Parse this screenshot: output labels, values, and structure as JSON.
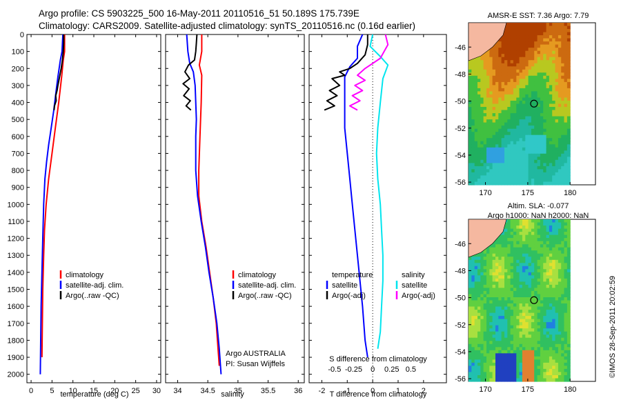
{
  "title": {
    "line1": "Argo profile: CS 5903225_500 16-May-2011 20110516_51 50.189S 175.739E",
    "line2": "Climatology: CARS2009. Satellite-adjusted climatology: synTS_20110516.nc (0.16d earlier)"
  },
  "watermark": "©IMOS 28-Sep-2011 20:02:59",
  "colors": {
    "climatology": "#ff0000",
    "satellite": "#0000ff",
    "argo": "#000000",
    "salinity_sat": "#00e5ee",
    "salinity_argo": "#ff00ff"
  },
  "chart_data": [
    {
      "id": "temperature",
      "type": "line",
      "xlabel": "temperature (deg C)",
      "xlim": [
        -1,
        31
      ],
      "xticks": [
        0,
        5,
        10,
        15,
        20,
        25,
        30
      ],
      "xtick_labels": [
        "0",
        "5",
        "10",
        "15",
        "20",
        "25",
        "30"
      ],
      "ylim": [
        0,
        2050
      ],
      "yticks": [
        0,
        100,
        200,
        300,
        400,
        500,
        600,
        700,
        800,
        900,
        1000,
        1100,
        1200,
        1300,
        1400,
        1500,
        1600,
        1700,
        1800,
        1900,
        2000
      ],
      "y_reversed": true,
      "legend": {
        "placement": "lower-middle",
        "entries": [
          "climatology",
          "satellite-adj. clim.",
          "Argo(..raw -QC)"
        ]
      },
      "series": [
        {
          "name": "climatology",
          "color": "#ff0000",
          "points": [
            [
              8.0,
              0
            ],
            [
              8.0,
              100
            ],
            [
              7.7,
              150
            ],
            [
              7.3,
              250
            ],
            [
              6.6,
              400
            ],
            [
              5.8,
              550
            ],
            [
              5.0,
              700
            ],
            [
              4.2,
              850
            ],
            [
              3.6,
              1000
            ],
            [
              3.2,
              1150
            ],
            [
              3.0,
              1300
            ],
            [
              2.8,
              1500
            ],
            [
              2.7,
              1700
            ],
            [
              2.6,
              1900
            ]
          ]
        },
        {
          "name": "satellite-adj. clim.",
          "color": "#0000ff",
          "points": [
            [
              7.6,
              0
            ],
            [
              7.4,
              100
            ],
            [
              7.0,
              150
            ],
            [
              6.4,
              250
            ],
            [
              5.9,
              350
            ],
            [
              5.4,
              450
            ],
            [
              4.8,
              550
            ],
            [
              4.2,
              650
            ],
            [
              3.7,
              750
            ],
            [
              3.3,
              850
            ],
            [
              3.0,
              1000
            ],
            [
              2.8,
              1200
            ],
            [
              2.6,
              1400
            ],
            [
              2.4,
              1600
            ],
            [
              2.3,
              1800
            ],
            [
              2.2,
              2000
            ]
          ]
        },
        {
          "name": "Argo(..raw -QC)",
          "color": "#000000",
          "points": [
            [
              7.8,
              0
            ],
            [
              7.8,
              50
            ],
            [
              7.7,
              100
            ],
            [
              7.5,
              150
            ],
            [
              7.2,
              200
            ],
            [
              6.8,
              250
            ],
            [
              6.4,
              300
            ],
            [
              6.2,
              330
            ],
            [
              5.9,
              360
            ],
            [
              6.0,
              390
            ],
            [
              5.6,
              420
            ],
            [
              5.5,
              445
            ]
          ]
        }
      ]
    },
    {
      "id": "salinity",
      "type": "line",
      "xlabel": "salinity",
      "xlim": [
        33.8,
        36.1
      ],
      "xticks": [
        34,
        34.5,
        35,
        35.5,
        36
      ],
      "xtick_labels": [
        "34",
        "34.5",
        "35",
        "35.5",
        "36"
      ],
      "ylim": [
        0,
        2050
      ],
      "y_reversed": true,
      "legend": {
        "placement": "lower-right",
        "entries": [
          "climatology",
          "satellite-adj. clim.",
          "Argo(..raw -QC)"
        ]
      },
      "annotation": {
        "line1": "Argo AUSTRALIA",
        "line2": "PI: Susan Wijffels"
      },
      "series": [
        {
          "name": "climatology",
          "color": "#ff0000",
          "points": [
            [
              34.4,
              0
            ],
            [
              34.4,
              100
            ],
            [
              34.36,
              180
            ],
            [
              34.4,
              240
            ],
            [
              34.39,
              400
            ],
            [
              34.37,
              600
            ],
            [
              34.35,
              800
            ],
            [
              34.35,
              950
            ],
            [
              34.4,
              1100
            ],
            [
              34.47,
              1250
            ],
            [
              34.53,
              1400
            ],
            [
              34.59,
              1550
            ],
            [
              34.64,
              1700
            ],
            [
              34.67,
              1850
            ],
            [
              34.69,
              1950
            ]
          ]
        },
        {
          "name": "satellite-adj. clim.",
          "color": "#0000ff",
          "points": [
            [
              34.15,
              0
            ],
            [
              34.17,
              100
            ],
            [
              34.2,
              170
            ],
            [
              34.26,
              220
            ],
            [
              34.29,
              300
            ],
            [
              34.3,
              400
            ],
            [
              34.31,
              500
            ],
            [
              34.3,
              600
            ],
            [
              34.3,
              800
            ],
            [
              34.33,
              950
            ],
            [
              34.39,
              1100
            ],
            [
              34.46,
              1250
            ],
            [
              34.52,
              1400
            ],
            [
              34.59,
              1550
            ],
            [
              34.65,
              1700
            ],
            [
              34.69,
              1850
            ],
            [
              34.72,
              2000
            ]
          ]
        },
        {
          "name": "Argo(..raw -QC)",
          "color": "#000000",
          "points": [
            [
              34.32,
              0
            ],
            [
              34.31,
              50
            ],
            [
              34.3,
              100
            ],
            [
              34.28,
              150
            ],
            [
              34.18,
              180
            ],
            [
              34.12,
              220
            ],
            [
              34.2,
              260
            ],
            [
              34.09,
              290
            ],
            [
              34.19,
              320
            ],
            [
              34.1,
              360
            ],
            [
              34.21,
              390
            ],
            [
              34.14,
              420
            ],
            [
              34.22,
              445
            ]
          ]
        }
      ]
    },
    {
      "id": "difference",
      "type": "line",
      "xlabel": "T difference from climatology",
      "xlim": [
        -2.5,
        2.9
      ],
      "xticks": [
        -2,
        -1,
        0,
        1,
        2
      ],
      "xtick_labels": [
        "-2",
        "-1",
        "0",
        "1",
        "2"
      ],
      "secondary_xlabel": "S difference from climatology",
      "secondary_xtick_labels": [
        "-0.5",
        "-0.25",
        "0",
        "0.25",
        "0.5"
      ],
      "secondary_xtick_values": [
        -1.5,
        -0.75,
        0,
        0.75,
        1.5
      ],
      "ylim": [
        0,
        2050
      ],
      "y_reversed": true,
      "zero_line": "dotted",
      "legend": {
        "placement": "lower-middle",
        "temperature_header": "temperature",
        "salinity_header": "salinity",
        "entries": [
          "satellite",
          "Argo(-adj)",
          "satellite",
          "Argo(-adj)"
        ]
      },
      "series": [
        {
          "name": "temperature satellite",
          "color": "#0000ff",
          "points": [
            [
              -0.4,
              0
            ],
            [
              -0.6,
              70
            ],
            [
              -0.6,
              140
            ],
            [
              -0.9,
              190
            ],
            [
              -1.1,
              250
            ],
            [
              -1.1,
              400
            ],
            [
              -1.1,
              550
            ],
            [
              -1.0,
              700
            ],
            [
              -0.9,
              850
            ],
            [
              -0.8,
              1000
            ],
            [
              -0.7,
              1150
            ],
            [
              -0.6,
              1300
            ],
            [
              -0.5,
              1450
            ],
            [
              -0.4,
              1600
            ],
            [
              -0.3,
              1800
            ],
            [
              -0.2,
              1900
            ]
          ]
        },
        {
          "name": "temperature Argo(-adj)",
          "color": "#000000",
          "points": [
            [
              -0.2,
              0
            ],
            [
              -0.2,
              60
            ],
            [
              -0.3,
              120
            ],
            [
              -0.6,
              170
            ],
            [
              -0.9,
              200
            ],
            [
              -1.3,
              220
            ],
            [
              -1.1,
              240
            ],
            [
              -1.6,
              260
            ],
            [
              -1.3,
              300
            ],
            [
              -1.7,
              330
            ],
            [
              -1.4,
              360
            ],
            [
              -1.8,
              390
            ],
            [
              -1.5,
              420
            ],
            [
              -1.9,
              445
            ]
          ]
        },
        {
          "name": "salinity satellite",
          "color": "#00e5ee",
          "points": [
            [
              0.0,
              0
            ],
            [
              -0.1,
              70
            ],
            [
              0.3,
              130
            ],
            [
              0.6,
              180
            ],
            [
              0.4,
              260
            ],
            [
              0.3,
              400
            ],
            [
              0.2,
              550
            ],
            [
              0.15,
              700
            ],
            [
              0.2,
              850
            ],
            [
              0.3,
              1000
            ],
            [
              0.35,
              1150
            ],
            [
              0.4,
              1300
            ],
            [
              0.4,
              1450
            ],
            [
              0.35,
              1600
            ],
            [
              0.3,
              1750
            ],
            [
              0.2,
              1850
            ]
          ]
        },
        {
          "name": "salinity Argo(-adj)",
          "color": "#ff00ff",
          "points": [
            [
              0.5,
              0
            ],
            [
              0.6,
              60
            ],
            [
              0.3,
              140
            ],
            [
              -0.3,
              200
            ],
            [
              -0.6,
              240
            ],
            [
              -0.3,
              270
            ],
            [
              -0.7,
              300
            ],
            [
              -0.4,
              330
            ],
            [
              -0.8,
              360
            ],
            [
              -0.5,
              390
            ],
            [
              -0.9,
              420
            ],
            [
              -0.6,
              445
            ]
          ]
        }
      ]
    }
  ],
  "maps": [
    {
      "id": "sst-map",
      "title": "AMSR-E SST: 7.36 Argo: 7.79",
      "xticks": [
        170,
        175,
        180
      ],
      "xtick_labels": [
        "170",
        "175",
        "180"
      ],
      "yticks": [
        -46,
        -48,
        -50,
        -52,
        -54,
        -56
      ],
      "ytick_labels": [
        "-46",
        "-48",
        "-50",
        "-52",
        "-54",
        "-56"
      ],
      "xlim": [
        168,
        183
      ],
      "ylim": [
        -56.2,
        -44.2
      ]
    },
    {
      "id": "sla-map",
      "title_line1": "Altim. SLA: -0.077",
      "title_line2": "Argo h1000: NaN h2000: NaN",
      "xticks": [
        170,
        175,
        180
      ],
      "xtick_labels": [
        "170",
        "175",
        "180"
      ],
      "yticks": [
        -46,
        -48,
        -50,
        -52,
        -54,
        -56
      ],
      "ytick_labels": [
        "-46",
        "-48",
        "-50",
        "-52",
        "-54",
        "-56"
      ],
      "xlim": [
        168,
        183
      ],
      "ylim": [
        -56.2,
        -44.2
      ]
    }
  ],
  "profile_location": {
    "lon": 175.739,
    "lat": -50.189
  }
}
